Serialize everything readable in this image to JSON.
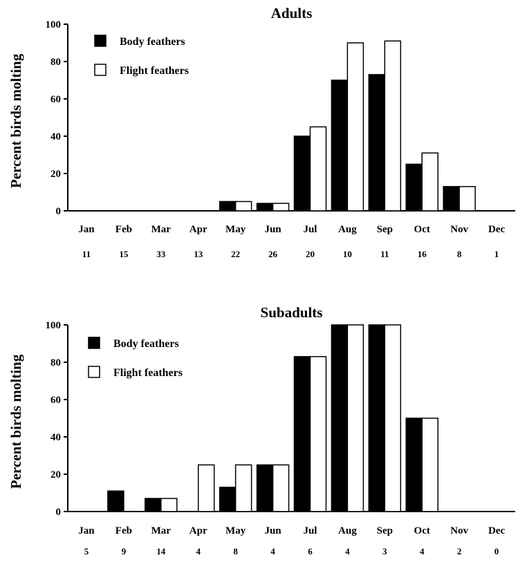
{
  "chart_data": [
    {
      "type": "bar",
      "title": "Adults",
      "xlabel": "",
      "ylabel": "Percent birds molting",
      "ylim": [
        0,
        100
      ],
      "yticks": [
        "0",
        "20",
        "40",
        "60",
        "80",
        "100"
      ],
      "categories": [
        "Jan",
        "Feb",
        "Mar",
        "Apr",
        "May",
        "Jun",
        "Jul",
        "Aug",
        "Sep",
        "Oct",
        "Nov",
        "Dec"
      ],
      "sample_sizes": [
        "11",
        "15",
        "33",
        "13",
        "22",
        "26",
        "20",
        "10",
        "11",
        "16",
        "8",
        "1"
      ],
      "series": [
        {
          "name": "Body feathers",
          "color": "#000000",
          "values": [
            0,
            0,
            0,
            0,
            5,
            4,
            40,
            70,
            73,
            25,
            13,
            0
          ]
        },
        {
          "name": "Flight feathers",
          "color": "#ffffff",
          "values": [
            0,
            0,
            0,
            0,
            5,
            4,
            45,
            90,
            91,
            31,
            13,
            0
          ]
        }
      ],
      "legend_position": "top-left",
      "grid": false
    },
    {
      "type": "bar",
      "title": "Subadults",
      "xlabel": "",
      "ylabel": "Percent birds molting",
      "ylim": [
        0,
        100
      ],
      "yticks": [
        "0",
        "20",
        "40",
        "60",
        "80",
        "100"
      ],
      "categories": [
        "Jan",
        "Feb",
        "Mar",
        "Apr",
        "May",
        "Jun",
        "Jul",
        "Aug",
        "Sep",
        "Oct",
        "Nov",
        "Dec"
      ],
      "sample_sizes": [
        "5",
        "9",
        "14",
        "4",
        "8",
        "4",
        "6",
        "4",
        "3",
        "4",
        "2",
        "0"
      ],
      "series": [
        {
          "name": "Body feathers",
          "color": "#000000",
          "values": [
            0,
            11,
            7,
            0,
            13,
            25,
            83,
            100,
            100,
            50,
            0,
            0
          ]
        },
        {
          "name": "Flight feathers",
          "color": "#ffffff",
          "values": [
            0,
            0,
            7,
            25,
            25,
            25,
            83,
            100,
            100,
            50,
            0,
            0
          ]
        }
      ],
      "legend_position": "top-left",
      "grid": false
    }
  ]
}
